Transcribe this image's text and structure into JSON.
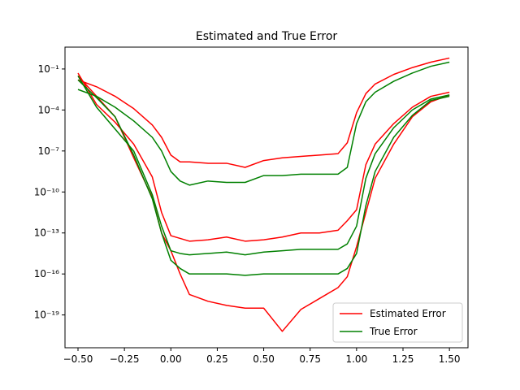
{
  "chart_data": {
    "type": "line",
    "title": "Estimated and True Error",
    "xlabel": "",
    "ylabel": "",
    "xlim": [
      -0.57,
      1.6
    ],
    "ylim_log10": [
      -21.4,
      0.6
    ],
    "yscale": "log",
    "grid": false,
    "legend_position": "lower-right",
    "x_ticks": [
      -0.5,
      -0.25,
      0.0,
      0.25,
      0.5,
      0.75,
      1.0,
      1.25,
      1.5
    ],
    "x_tick_labels": [
      "−0.50",
      "−0.25",
      "0.00",
      "0.25",
      "0.50",
      "0.75",
      "1.00",
      "1.25",
      "1.50"
    ],
    "y_ticks_log10": [
      -19,
      -16,
      -13,
      -10,
      -7,
      -4,
      -1
    ],
    "y_tick_labels": [
      "10⁻¹⁹",
      "10⁻¹⁶",
      "10⁻¹³",
      "10⁻¹⁰",
      "10⁻⁷",
      "10⁻⁴",
      "10⁻¹"
    ],
    "series": [
      {
        "name": "Estimated Error",
        "color": "#ff0000",
        "curves": [
          {
            "x": [
              -0.5,
              -0.4,
              -0.3,
              -0.2,
              -0.1,
              -0.05,
              0.0,
              0.05,
              0.1,
              0.2,
              0.3,
              0.4,
              0.5,
              0.6,
              0.7,
              0.8,
              0.9,
              0.95,
              1.0,
              1.05,
              1.1,
              1.2,
              1.3,
              1.4,
              1.5
            ],
            "log10_y": [
              -1.8,
              -2.3,
              -3.0,
              -3.9,
              -5.1,
              -6.0,
              -7.3,
              -7.8,
              -7.8,
              -7.9,
              -7.9,
              -8.2,
              -7.7,
              -7.5,
              -7.4,
              -7.3,
              -7.2,
              -6.4,
              -4.2,
              -2.8,
              -2.1,
              -1.4,
              -0.9,
              -0.5,
              -0.2
            ]
          },
          {
            "x": [
              -0.5,
              -0.4,
              -0.3,
              -0.2,
              -0.1,
              -0.05,
              0.0,
              0.05,
              0.1,
              0.2,
              0.3,
              0.4,
              0.5,
              0.6,
              0.7,
              0.8,
              0.9,
              0.95,
              1.0,
              1.05,
              1.1,
              1.2,
              1.3,
              1.4,
              1.5
            ],
            "log10_y": [
              -1.3,
              -3.6,
              -4.9,
              -6.5,
              -8.9,
              -11.5,
              -13.2,
              -13.4,
              -13.6,
              -13.5,
              -13.3,
              -13.6,
              -13.5,
              -13.3,
              -13.0,
              -13.0,
              -12.8,
              -12.1,
              -11.3,
              -8.0,
              -6.5,
              -5.0,
              -3.8,
              -3.0,
              -2.7
            ]
          },
          {
            "x": [
              -0.5,
              -0.4,
              -0.3,
              -0.2,
              -0.1,
              -0.05,
              0.0,
              0.05,
              0.1,
              0.2,
              0.3,
              0.4,
              0.5,
              0.6,
              0.7,
              0.8,
              0.9,
              0.95,
              1.0,
              1.05,
              1.1,
              1.2,
              1.3,
              1.4,
              1.5
            ],
            "log10_y": [
              -1.5,
              -3.0,
              -4.5,
              -7.5,
              -10.4,
              -13.0,
              -14.3,
              -16.0,
              -17.5,
              -18.0,
              -18.3,
              -18.5,
              -18.5,
              -20.2,
              -18.6,
              -17.8,
              -17.0,
              -16.2,
              -14.0,
              -11.5,
              -9.0,
              -6.5,
              -4.5,
              -3.4,
              -2.9
            ]
          }
        ]
      },
      {
        "name": "True Error",
        "color": "#008000",
        "curves": [
          {
            "x": [
              -0.5,
              -0.4,
              -0.3,
              -0.2,
              -0.1,
              -0.05,
              0.0,
              0.05,
              0.1,
              0.2,
              0.3,
              0.4,
              0.5,
              0.6,
              0.7,
              0.8,
              0.9,
              0.95,
              1.0,
              1.05,
              1.1,
              1.2,
              1.3,
              1.4,
              1.5
            ],
            "log10_y": [
              -2.5,
              -3.0,
              -3.8,
              -4.8,
              -6.0,
              -7.0,
              -8.5,
              -9.2,
              -9.5,
              -9.2,
              -9.3,
              -9.3,
              -8.8,
              -8.8,
              -8.7,
              -8.7,
              -8.7,
              -8.2,
              -5.0,
              -3.4,
              -2.7,
              -1.9,
              -1.3,
              -0.8,
              -0.5
            ]
          },
          {
            "x": [
              -0.5,
              -0.4,
              -0.3,
              -0.2,
              -0.1,
              -0.05,
              0.0,
              0.05,
              0.1,
              0.2,
              0.3,
              0.4,
              0.5,
              0.6,
              0.7,
              0.8,
              0.9,
              0.95,
              1.0,
              1.05,
              1.1,
              1.2,
              1.3,
              1.4,
              1.5
            ],
            "log10_y": [
              -1.5,
              -3.8,
              -5.4,
              -7.0,
              -10.2,
              -12.5,
              -14.3,
              -14.5,
              -14.6,
              -14.5,
              -14.4,
              -14.6,
              -14.4,
              -14.3,
              -14.2,
              -14.2,
              -14.2,
              -13.8,
              -12.5,
              -9.0,
              -7.2,
              -5.3,
              -4.0,
              -3.2,
              -2.9
            ]
          },
          {
            "x": [
              -0.5,
              -0.4,
              -0.3,
              -0.2,
              -0.1,
              -0.05,
              0.0,
              0.05,
              0.1,
              0.2,
              0.3,
              0.4,
              0.5,
              0.6,
              0.7,
              0.8,
              0.9,
              0.95,
              1.0,
              1.05,
              1.1,
              1.2,
              1.3,
              1.4,
              1.5
            ],
            "log10_y": [
              -1.8,
              -3.1,
              -4.5,
              -7.3,
              -10.5,
              -13.0,
              -15.0,
              -15.6,
              -16.0,
              -16.0,
              -16.0,
              -16.1,
              -16.0,
              -16.0,
              -16.0,
              -16.0,
              -16.0,
              -15.6,
              -14.5,
              -11.0,
              -8.5,
              -6.0,
              -4.4,
              -3.3,
              -3.0
            ]
          }
        ]
      }
    ]
  }
}
